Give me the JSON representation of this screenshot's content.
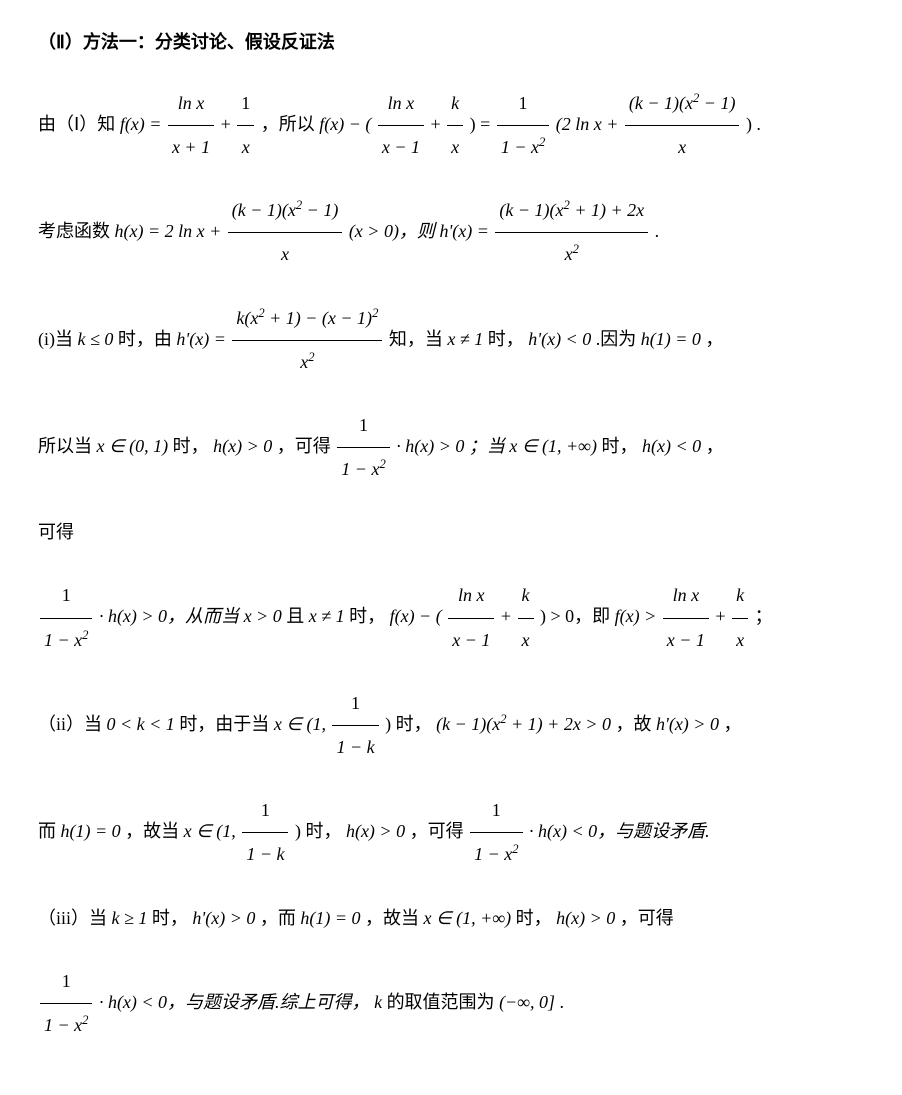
{
  "title": "（Ⅱ）方法一：分类讨论、假设反证法",
  "p1_a": "由（Ⅰ）知",
  "p1_fx": "f(x) =",
  "p1_frac1_num": "ln x",
  "p1_frac1_den": "x + 1",
  "p1_plus": "+",
  "p1_frac2_num": "1",
  "p1_frac2_den": "x",
  "p1_b": "，所以",
  "p1_fx2": "f(x) − (",
  "p1_frac3_num": "ln x",
  "p1_frac3_den": "x − 1",
  "p1_frac4_num": "k",
  "p1_frac4_den": "x",
  "p1_c": ") =",
  "p1_frac5_num": "1",
  "p1_frac5_den_a": "1 − x",
  "p1_frac5_den_sup": "2",
  "p1_d": "(2 ln x +",
  "p1_frac6_num_a": "(k − 1)(x",
  "p1_frac6_num_sup": "2",
  "p1_frac6_num_b": " − 1)",
  "p1_frac6_den": "x",
  "p1_e": ") .",
  "p2_a": "考虑函数",
  "p2_hx": "h(x) = 2 ln x +",
  "p2_frac1_num_a": "(k − 1)(x",
  "p2_frac1_num_sup": "2",
  "p2_frac1_num_b": " − 1)",
  "p2_frac1_den": "x",
  "p2_b": "(x > 0)，则",
  "p2_hpx": "h'(x) =",
  "p2_frac2_num_a": "(k − 1)(x",
  "p2_frac2_num_sup1": "2",
  "p2_frac2_num_b": " + 1) + 2x",
  "p2_frac2_den_a": "x",
  "p2_frac2_den_sup": "2",
  "p2_c": ".",
  "p3_a": "(i)当",
  "p3_k": "k ≤ 0",
  "p3_b": "时，由",
  "p3_hpx": "h'(x) =",
  "p3_frac1_num_a": "k(x",
  "p3_frac1_num_sup1": "2",
  "p3_frac1_num_b": " + 1) − (x − 1)",
  "p3_frac1_num_sup2": "2",
  "p3_frac1_den_a": "x",
  "p3_frac1_den_sup": "2",
  "p3_c": "知，当",
  "p3_xne1": "x ≠ 1",
  "p3_d": "时，",
  "p3_hplt0": "h'(x) < 0",
  "p3_e": ".因为",
  "p3_h1": "h(1) = 0",
  "p3_f": "，",
  "p4_a": "所以当",
  "p4_x01": "x ∈ (0, 1)",
  "p4_b": "时，",
  "p4_hgt0": "h(x) > 0",
  "p4_c": "，可得",
  "p4_frac1_num": "1",
  "p4_frac1_den_a": "1 − x",
  "p4_frac1_den_sup": "2",
  "p4_d": "· h(x) > 0 ；当",
  "p4_x1inf": "x ∈ (1, +∞)",
  "p4_e": "时，",
  "p4_hlt0": "h(x) < 0",
  "p4_f": "，",
  "p5_a": "可得",
  "p6_frac1_num": "1",
  "p6_frac1_den_a": "1 − x",
  "p6_frac1_den_sup": "2",
  "p6_a": "· h(x) > 0，从而当",
  "p6_xgt0": "x > 0",
  "p6_b": "且",
  "p6_xne1": "x ≠ 1",
  "p6_c": "时，",
  "p6_fx": "f(x) − (",
  "p6_frac2_num": "ln x",
  "p6_frac2_den": "x − 1",
  "p6_plus": "+",
  "p6_frac3_num": "k",
  "p6_frac3_den": "x",
  "p6_d": ") > 0，即",
  "p6_fx2": "f(x) >",
  "p6_frac4_num": "ln x",
  "p6_frac4_den": "x − 1",
  "p6_frac5_num": "k",
  "p6_frac5_den": "x",
  "p6_e": "；",
  "p7_a": "（ii）当",
  "p7_k": "0 < k < 1",
  "p7_b": "时，由于当",
  "p7_x": "x ∈ (1,",
  "p7_frac1_num": "1",
  "p7_frac1_den": "1 − k",
  "p7_c": ") 时，",
  "p7_expr_a": "(k − 1)(x",
  "p7_expr_sup": "2",
  "p7_expr_b": " + 1) + 2x > 0",
  "p7_d": "，故",
  "p7_hpgt0": "h'(x) > 0",
  "p7_e": "，",
  "p8_a": "而",
  "p8_h1": "h(1) = 0",
  "p8_b": "，故当",
  "p8_x": "x ∈ (1,",
  "p8_frac1_num": "1",
  "p8_frac1_den": "1 − k",
  "p8_c": ") 时，",
  "p8_hgt0": "h(x) > 0",
  "p8_d": "，可得",
  "p8_frac2_num": "1",
  "p8_frac2_den_a": "1 − x",
  "p8_frac2_den_sup": "2",
  "p8_e": "· h(x) < 0，与题设矛盾.",
  "p9_a": "（iii）当",
  "p9_k": "k ≥ 1",
  "p9_b": "时，",
  "p9_hpgt0": "h'(x) > 0",
  "p9_c": "，而",
  "p9_h1": "h(1) = 0",
  "p9_d": "，故当",
  "p9_x": "x ∈ (1, +∞)",
  "p9_e": "时，",
  "p9_hgt0": "h(x) > 0",
  "p9_f": "，可得",
  "p10_frac1_num": "1",
  "p10_frac1_den_a": "1 − x",
  "p10_frac1_den_sup": "2",
  "p10_a": "· h(x) < 0，与题设矛盾.综上可得，",
  "p10_k": "k",
  "p10_b": "的取值范围为",
  "p10_range": "(−∞, 0]",
  "p10_c": " ."
}
